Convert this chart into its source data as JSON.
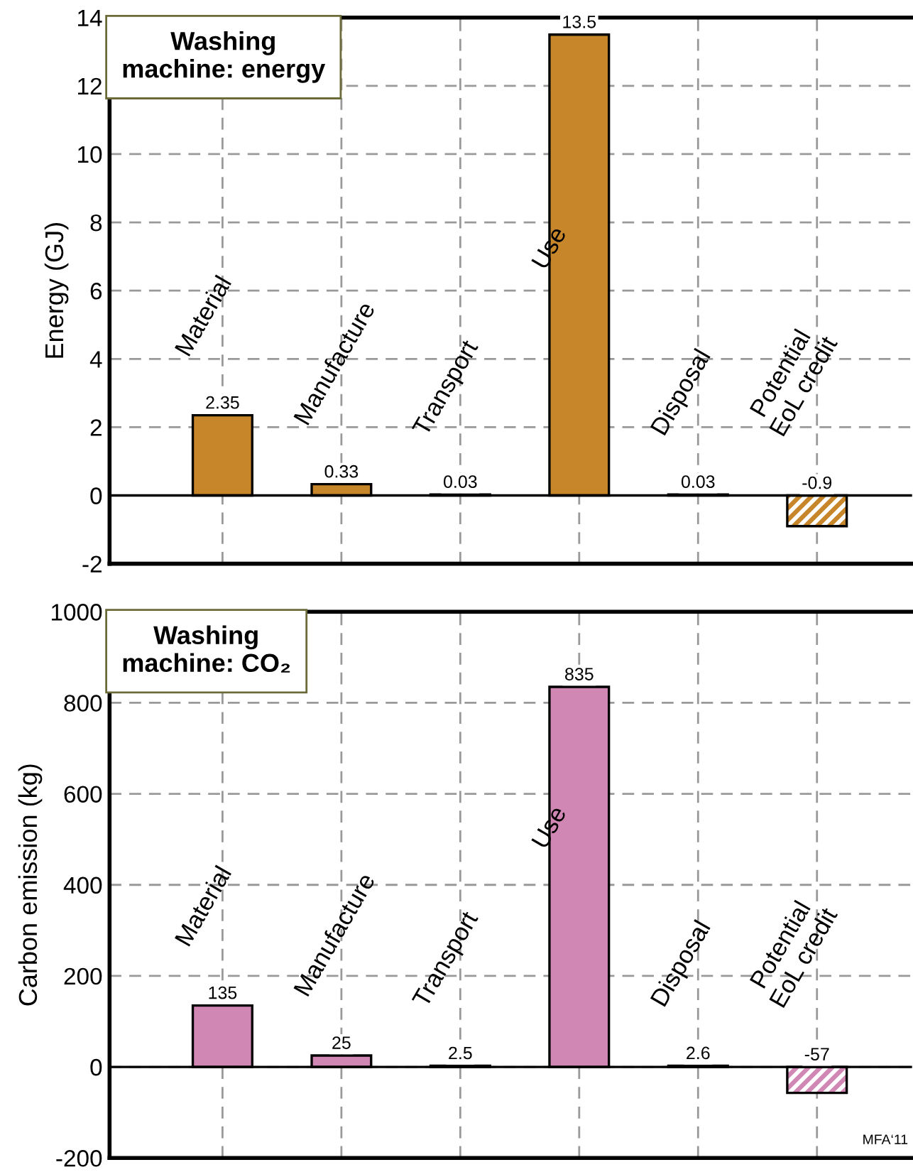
{
  "chart_data": [
    {
      "type": "bar",
      "title": "Washing\nmachine: energy",
      "ylabel": "Energy (GJ)",
      "categories": [
        "Material",
        "Manufacture",
        "Transport",
        "Use",
        "Disposal",
        "Potential\nEoL credit"
      ],
      "values": [
        2.35,
        0.33,
        0.03,
        13.5,
        0.03,
        -0.9
      ],
      "color": "#c8862a",
      "ylim": [
        -2,
        14
      ],
      "yticks": [
        -2,
        0,
        2,
        4,
        6,
        8,
        10,
        12,
        14
      ],
      "grid": true,
      "data_labels": true,
      "tick_labels": "y"
    },
    {
      "type": "bar",
      "title": "Washing\nmachine: CO₂",
      "ylabel": "Carbon emission (kg)",
      "categories": [
        "Material",
        "Manufacture",
        "Transport",
        "Use",
        "Disposal",
        "Potential\nEoL credit"
      ],
      "values": [
        135,
        25,
        2.5,
        835,
        2.6,
        -57
      ],
      "color": "#d087b4",
      "ylim": [
        -200,
        1000
      ],
      "yticks": [
        -200,
        0,
        200,
        400,
        600,
        800,
        1000
      ],
      "grid": true,
      "data_labels": true,
      "tick_labels": "y",
      "annotations": [
        "MFA‘11"
      ]
    }
  ]
}
